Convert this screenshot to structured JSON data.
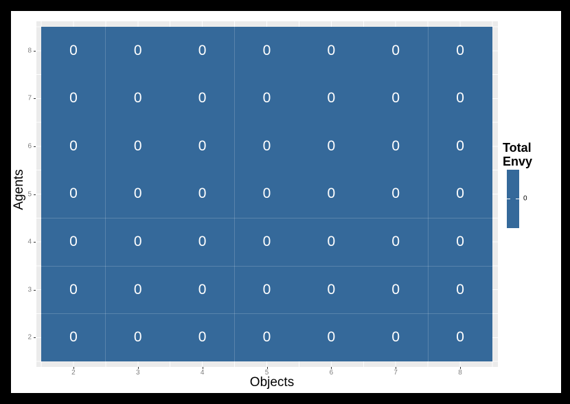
{
  "figure": {
    "background": "#000000",
    "card_background": "#ffffff"
  },
  "chart_data": {
    "type": "heatmap",
    "title": "",
    "xlabel": "Objects",
    "ylabel": "Agents",
    "x_categories": [
      "2",
      "3",
      "4",
      "5",
      "6",
      "7",
      "8"
    ],
    "y_categories_bottom_to_top": [
      "2",
      "3",
      "4",
      "5",
      "6",
      "7",
      "8"
    ],
    "values_rows_top_to_bottom": [
      [
        0,
        0,
        0,
        0,
        0,
        0,
        0
      ],
      [
        0,
        0,
        0,
        0,
        0,
        0,
        0
      ],
      [
        0,
        0,
        0,
        0,
        0,
        0,
        0
      ],
      [
        0,
        0,
        0,
        0,
        0,
        0,
        0
      ],
      [
        0,
        0,
        0,
        0,
        0,
        0,
        0
      ],
      [
        0,
        0,
        0,
        0,
        0,
        0,
        0
      ],
      [
        0,
        0,
        0,
        0,
        0,
        0,
        0
      ]
    ],
    "fill_color": "#35699a",
    "cell_label_color": "#ffffff",
    "panel_background": "#ebebeb",
    "gridline_color": "#ffffff",
    "axis_text_color": "#7e7e7e",
    "axis_title_color": "#000000",
    "tick_mark_color": "#333333",
    "legend": {
      "title_lines": [
        "Total",
        "Envy"
      ],
      "tick_label": "0"
    },
    "layout_hints": {
      "grid": "major and minor white gridlines hidden behind tiles, visible only in panel margins",
      "legend_position": "right",
      "axis_ranges": {
        "x": [
          1.5,
          8.5
        ],
        "y": [
          1.5,
          8.5
        ]
      }
    }
  }
}
